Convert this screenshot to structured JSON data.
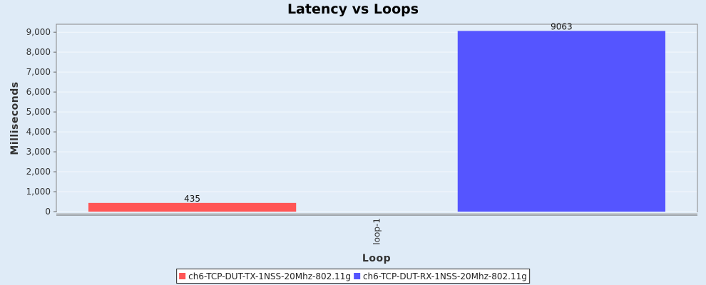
{
  "chart_data": {
    "type": "bar",
    "title": "Latency vs Loops",
    "xlabel": "Loop",
    "ylabel": "Milliseconds",
    "categories": [
      "loop-1"
    ],
    "series": [
      {
        "name": "ch6-TCP-DUT-TX-1NSS-20Mhz-802.11g",
        "values": [
          435
        ],
        "color": "#ff5555"
      },
      {
        "name": "ch6-TCP-DUT-RX-1NSS-20Mhz-802.11g",
        "values": [
          9063
        ],
        "color": "#5555ff"
      }
    ],
    "ylim": [
      0,
      9400
    ],
    "yticks": [
      0,
      1000,
      2000,
      3000,
      4000,
      5000,
      6000,
      7000,
      8000,
      9000
    ],
    "ytick_labels": [
      "0",
      "1,000",
      "2,000",
      "3,000",
      "4,000",
      "5,000",
      "6,000",
      "7,000",
      "8,000",
      "9,000"
    ],
    "data_labels": [
      "435",
      "9063"
    ],
    "grid": true,
    "legend_position": "bottom"
  }
}
